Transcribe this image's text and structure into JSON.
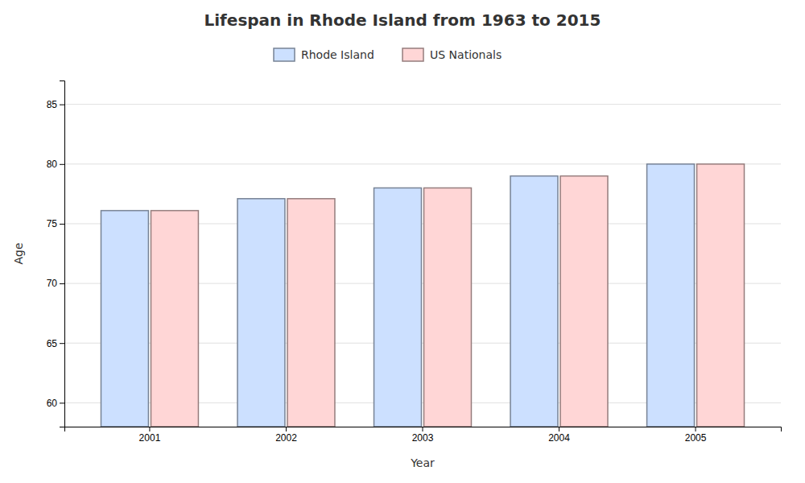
{
  "chart_data": {
    "type": "bar",
    "title": "Lifespan in Rhode Island from 1963 to 2015",
    "xlabel": "Year",
    "ylabel": "Age",
    "categories": [
      "2001",
      "2002",
      "2003",
      "2004",
      "2005"
    ],
    "series": [
      {
        "name": "Rhode Island",
        "color": "#cce0ff",
        "values": [
          76.1,
          77.1,
          78.0,
          79.0,
          80.0
        ]
      },
      {
        "name": "US Nationals",
        "color": "#ffd6d6",
        "values": [
          76.1,
          77.1,
          78.0,
          79.0,
          80.0
        ]
      }
    ],
    "ylim": [
      58,
      87
    ],
    "yticks": [
      60,
      65,
      70,
      75,
      80,
      85
    ],
    "grid": true,
    "legend": "top"
  }
}
